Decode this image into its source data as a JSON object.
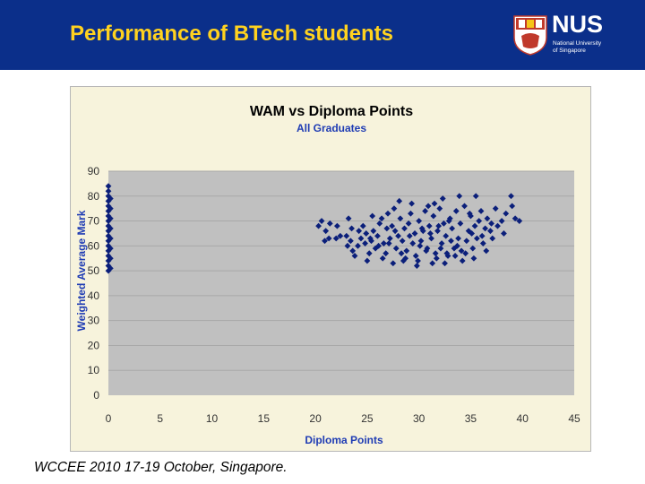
{
  "slide": {
    "title": "Performance of BTech students",
    "footer": "WCCEE 2010 17-19 October, Singapore."
  },
  "logo": {
    "word": "NUS",
    "subtitle_line1": "National University",
    "subtitle_line2": "of Singapore"
  },
  "colors": {
    "header_bg": "#0b2f8a",
    "title_text": "#ffd21f",
    "plot_bg": "#c0c0c0",
    "chart_bg": "#f7f3dc",
    "marker": "#0b1f7a",
    "subtitle": "#1f3cb4"
  },
  "chart_data": {
    "type": "scatter",
    "title": "WAM vs Diploma Points",
    "subtitle": "All Graduates",
    "xlabel": "Diploma Points",
    "ylabel": "Weighted Average Mark",
    "xlim": [
      0,
      45
    ],
    "ylim": [
      0,
      90
    ],
    "xticks": [
      0,
      5,
      10,
      15,
      20,
      25,
      30,
      35,
      40,
      45
    ],
    "yticks": [
      0,
      10,
      20,
      30,
      40,
      50,
      60,
      70,
      80,
      90
    ],
    "grid": "horizontal",
    "marker": "diamond",
    "series": [
      {
        "points": [
          [
            0,
            50
          ],
          [
            0,
            52
          ],
          [
            0,
            54
          ],
          [
            0,
            56
          ],
          [
            0,
            58
          ],
          [
            0,
            60
          ],
          [
            0,
            62
          ],
          [
            0,
            64
          ],
          [
            0,
            66
          ],
          [
            0,
            68
          ],
          [
            0,
            70
          ],
          [
            0,
            72
          ],
          [
            0,
            74
          ],
          [
            0,
            76
          ],
          [
            0,
            78
          ],
          [
            0,
            80
          ],
          [
            0,
            82
          ],
          [
            0,
            84
          ],
          [
            0.2,
            51
          ],
          [
            0.2,
            55
          ],
          [
            0.2,
            59
          ],
          [
            0.2,
            63
          ],
          [
            0.2,
            67
          ],
          [
            0.2,
            71
          ],
          [
            0.2,
            75
          ],
          [
            0.2,
            79
          ],
          [
            20.3,
            68
          ],
          [
            20.6,
            70
          ],
          [
            21.0,
            66
          ],
          [
            21.4,
            69
          ],
          [
            20.9,
            62
          ],
          [
            21.3,
            63
          ],
          [
            22.0,
            63
          ],
          [
            22.4,
            64
          ],
          [
            23.0,
            64
          ],
          [
            23.4,
            62
          ],
          [
            23.2,
            71
          ],
          [
            23.5,
            67
          ],
          [
            23.6,
            58
          ],
          [
            23.8,
            56
          ],
          [
            24.2,
            66
          ],
          [
            24.4,
            63
          ],
          [
            24.6,
            68
          ],
          [
            24.8,
            61
          ],
          [
            25.0,
            54
          ],
          [
            25.2,
            57
          ],
          [
            25.4,
            62
          ],
          [
            25.6,
            66
          ],
          [
            25.8,
            59
          ],
          [
            26.0,
            64
          ],
          [
            26.2,
            69
          ],
          [
            26.4,
            71
          ],
          [
            26.6,
            61
          ],
          [
            26.8,
            57
          ],
          [
            27.0,
            73
          ],
          [
            27.2,
            63
          ],
          [
            27.4,
            68
          ],
          [
            27.6,
            75
          ],
          [
            27.8,
            59
          ],
          [
            28.0,
            64
          ],
          [
            28.2,
            71
          ],
          [
            28.4,
            62
          ],
          [
            28.6,
            67
          ],
          [
            28.8,
            58
          ],
          [
            29.0,
            69
          ],
          [
            29.2,
            73
          ],
          [
            29.4,
            61
          ],
          [
            29.6,
            65
          ],
          [
            29.8,
            52
          ],
          [
            30.0,
            70
          ],
          [
            30.2,
            62
          ],
          [
            30.4,
            66
          ],
          [
            30.6,
            74
          ],
          [
            30.8,
            59
          ],
          [
            31.0,
            68
          ],
          [
            31.2,
            63
          ],
          [
            31.4,
            72
          ],
          [
            31.6,
            57
          ],
          [
            31.8,
            66
          ],
          [
            32.0,
            75
          ],
          [
            32.2,
            61
          ],
          [
            32.4,
            69
          ],
          [
            32.6,
            64
          ],
          [
            32.8,
            56
          ],
          [
            33.0,
            71
          ],
          [
            33.2,
            67
          ],
          [
            33.4,
            59
          ],
          [
            33.6,
            74
          ],
          [
            33.8,
            63
          ],
          [
            34.0,
            69
          ],
          [
            34.2,
            54
          ],
          [
            34.4,
            76
          ],
          [
            34.6,
            62
          ],
          [
            34.8,
            66
          ],
          [
            35.0,
            72
          ],
          [
            35.2,
            59
          ],
          [
            35.4,
            68
          ],
          [
            35.6,
            63
          ],
          [
            35.8,
            70
          ],
          [
            36.0,
            74
          ],
          [
            36.2,
            61
          ],
          [
            36.4,
            67
          ],
          [
            36.6,
            71
          ],
          [
            37.0,
            69
          ],
          [
            37.4,
            75
          ],
          [
            38.0,
            70
          ],
          [
            38.4,
            73
          ],
          [
            38.9,
            80
          ],
          [
            39.3,
            71
          ],
          [
            39.7,
            70
          ],
          [
            39.0,
            76
          ],
          [
            27.1,
            61
          ],
          [
            28.3,
            57
          ],
          [
            29.1,
            64
          ],
          [
            30.1,
            60
          ],
          [
            31.1,
            65
          ],
          [
            32.1,
            59
          ],
          [
            26.1,
            60
          ],
          [
            25.3,
            63
          ],
          [
            24.9,
            65
          ],
          [
            33.1,
            62
          ],
          [
            34.1,
            58
          ],
          [
            35.1,
            65
          ],
          [
            36.1,
            64
          ],
          [
            36.9,
            66
          ],
          [
            37.6,
            68
          ],
          [
            38.2,
            65
          ],
          [
            28.7,
            55
          ],
          [
            29.7,
            56
          ],
          [
            30.7,
            58
          ],
          [
            31.7,
            55
          ],
          [
            32.7,
            57
          ],
          [
            33.7,
            60
          ],
          [
            27.7,
            66
          ],
          [
            26.9,
            67
          ],
          [
            28.1,
            78
          ],
          [
            29.3,
            77
          ],
          [
            31.5,
            77
          ],
          [
            32.3,
            79
          ],
          [
            33.9,
            80
          ],
          [
            35.5,
            80
          ],
          [
            25.5,
            72
          ],
          [
            24.1,
            60
          ],
          [
            23.1,
            60
          ],
          [
            22.1,
            68
          ],
          [
            30.9,
            76
          ],
          [
            34.9,
            73
          ],
          [
            36.5,
            58
          ],
          [
            37.1,
            63
          ],
          [
            29.9,
            54
          ],
          [
            31.3,
            53
          ],
          [
            32.5,
            53
          ],
          [
            26.5,
            55
          ],
          [
            27.5,
            53
          ],
          [
            28.5,
            54
          ],
          [
            33.5,
            56
          ],
          [
            34.5,
            57
          ],
          [
            35.3,
            55
          ],
          [
            30.3,
            67
          ],
          [
            31.9,
            68
          ],
          [
            32.9,
            70
          ]
        ]
      }
    ]
  }
}
